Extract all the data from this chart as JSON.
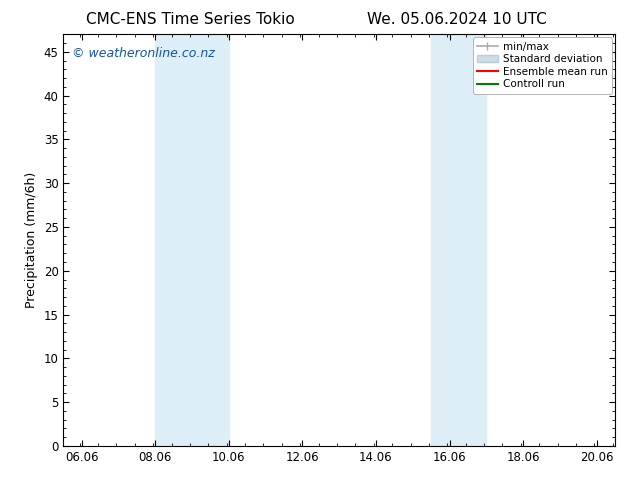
{
  "title_left": "CMC-ENS Time Series Tokio",
  "title_right": "We. 05.06.2024 10 UTC",
  "xlabel": "",
  "ylabel": "Precipitation (mm/6h)",
  "ylim": [
    0,
    47
  ],
  "yticks": [
    0,
    5,
    10,
    15,
    20,
    25,
    30,
    35,
    40,
    45
  ],
  "xlim_start": 5.56,
  "xlim_end": 20.56,
  "xtick_labels": [
    "06.06",
    "08.06",
    "10.06",
    "12.06",
    "14.06",
    "16.06",
    "18.06",
    "20.06"
  ],
  "xtick_positions": [
    6.06,
    8.06,
    10.06,
    12.06,
    14.06,
    16.06,
    18.06,
    20.06
  ],
  "shaded_regions": [
    {
      "x_start": 8.06,
      "x_end": 10.06,
      "color": "#ddeef7",
      "alpha": 1.0
    },
    {
      "x_start": 15.56,
      "x_end": 17.06,
      "color": "#ddeef7",
      "alpha": 1.0
    }
  ],
  "watermark": "© weatheronline.co.nz",
  "watermark_color": "#1155aa",
  "watermark_fontsize": 9,
  "legend_entries": [
    {
      "label": "min/max",
      "color": "#aaaaaa",
      "lw": 1.2,
      "style": "solid"
    },
    {
      "label": "Standard deviation",
      "color": "#ccdde8",
      "lw": 7,
      "style": "solid"
    },
    {
      "label": "Ensemble mean run",
      "color": "red",
      "lw": 1.5,
      "style": "solid"
    },
    {
      "label": "Controll run",
      "color": "green",
      "lw": 1.5,
      "style": "solid"
    }
  ],
  "background_color": "#ffffff",
  "plot_bg_color": "#ffffff",
  "border_color": "#000000",
  "title_fontsize": 11,
  "axis_label_fontsize": 9,
  "tick_fontsize": 8.5,
  "legend_fontsize": 7.5
}
